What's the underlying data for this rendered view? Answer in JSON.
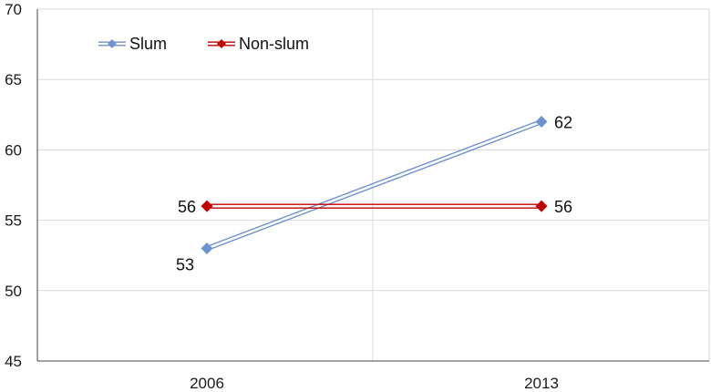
{
  "chart_data": {
    "type": "line",
    "categories": [
      "2006",
      "2013"
    ],
    "series": [
      {
        "name": "Slum",
        "values": [
          53,
          62
        ],
        "color": "#6f93cc",
        "marker": "diamond"
      },
      {
        "name": "Non-slum",
        "values": [
          56,
          56
        ],
        "color": "#c00000",
        "marker": "diamond"
      }
    ],
    "data_labels": [
      {
        "series": "Slum",
        "values": [
          "53",
          "62"
        ]
      },
      {
        "series": "Non-slum",
        "values": [
          "56",
          "56"
        ]
      }
    ],
    "y_ticks": [
      "45",
      "50",
      "55",
      "60",
      "65",
      "70"
    ],
    "ylim": [
      45,
      70
    ],
    "title": "",
    "xlabel": "",
    "ylabel": "",
    "grid": true,
    "legend_position": "top-left"
  }
}
